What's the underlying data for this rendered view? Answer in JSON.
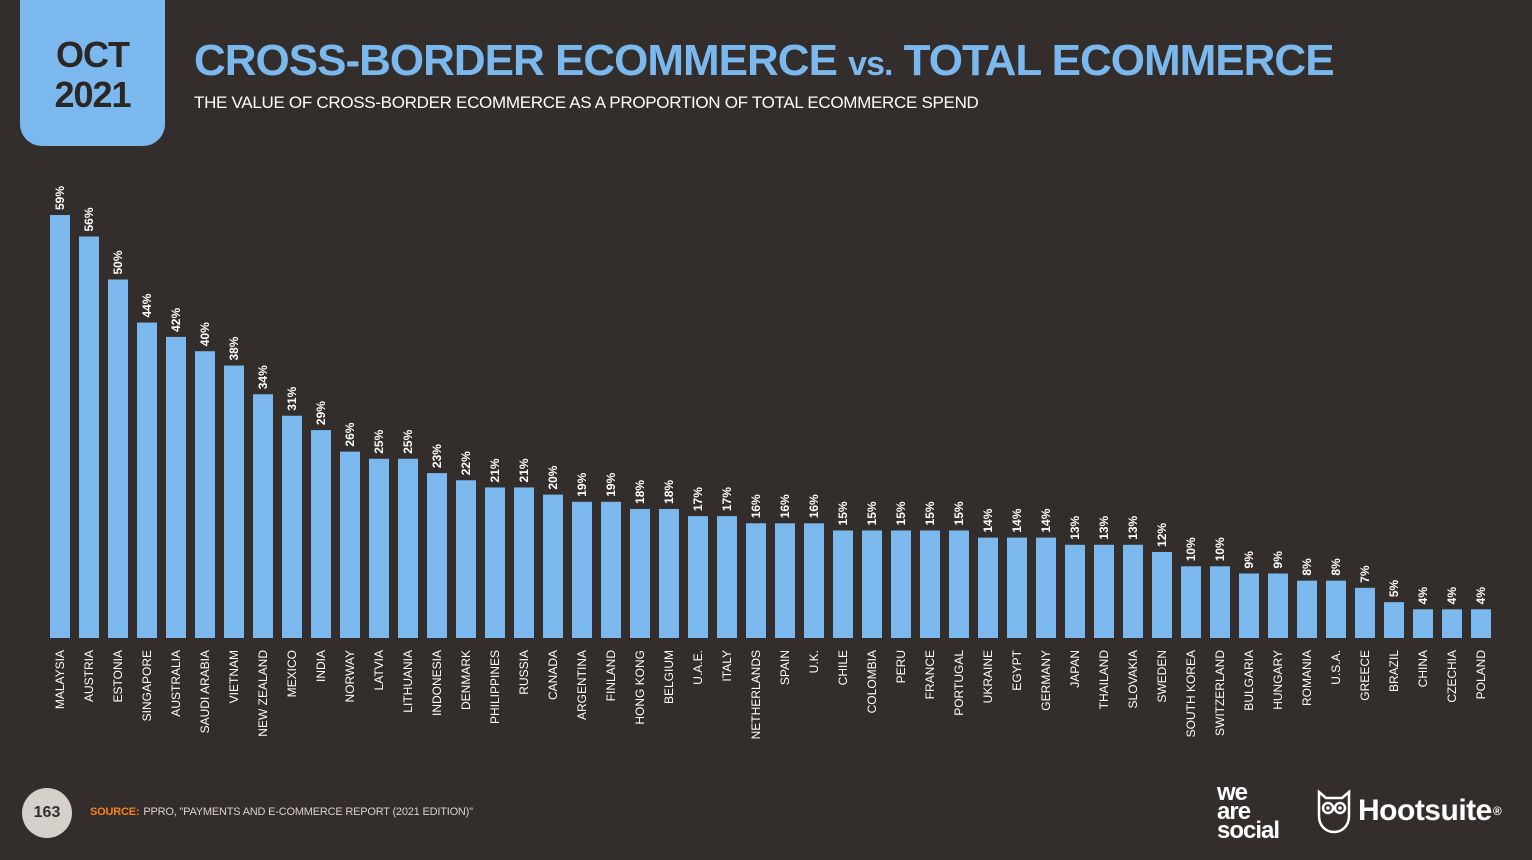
{
  "header": {
    "date_month": "OCT",
    "date_year": "2021",
    "title_part1": "CROSS-BORDER ECOMMERCE",
    "title_vs": "vs.",
    "title_part2": "TOTAL ECOMMERCE",
    "subtitle": "THE VALUE OF CROSS-BORDER ECOMMERCE AS A PROPORTION OF TOTAL ECOMMERCE SPEND"
  },
  "footer": {
    "page_number": "163",
    "source_label": "SOURCE:",
    "source_text": "PPRO, \"PAYMENTS AND E-COMMERCE REPORT (2021 EDITION)\"",
    "logo_we": "we",
    "logo_are": "are",
    "logo_social": "social",
    "logo_hootsuite": "Hootsuite",
    "hootsuite_mark": "®",
    "owl_icon": "owl-icon"
  },
  "colors": {
    "background": "#332e2b",
    "bar": "#7bb8ee",
    "accent_orange": "#f5821f"
  },
  "chart_data": {
    "type": "bar",
    "orientation": "vertical",
    "categories": [
      "MALAYSIA",
      "AUSTRIA",
      "ESTONIA",
      "SINGAPORE",
      "AUSTRALIA",
      "SAUDI ARABIA",
      "VIETNAM",
      "NEW ZEALAND",
      "MEXICO",
      "INDIA",
      "NORWAY",
      "LATVIA",
      "LITHUANIA",
      "INDONESIA",
      "DENMARK",
      "PHILIPPINES",
      "RUSSIA",
      "CANADA",
      "ARGENTINA",
      "FINLAND",
      "HONG KONG",
      "BELGIUM",
      "U.A.E.",
      "ITALY",
      "NETHERLANDS",
      "SPAIN",
      "U.K.",
      "CHILE",
      "COLOMBIA",
      "PERU",
      "FRANCE",
      "PORTUGAL",
      "UKRAINE",
      "EGYPT",
      "GERMANY",
      "JAPAN",
      "THAILAND",
      "SLOVAKIA",
      "SWEDEN",
      "SOUTH KOREA",
      "SWITZERLAND",
      "BULGARIA",
      "HUNGARY",
      "ROMANIA",
      "U.S.A.",
      "GREECE",
      "BRAZIL",
      "CHINA",
      "CZECHIA",
      "POLAND"
    ],
    "values": [
      59,
      56,
      50,
      44,
      42,
      40,
      38,
      34,
      31,
      29,
      26,
      25,
      25,
      23,
      22,
      21,
      21,
      20,
      19,
      19,
      18,
      18,
      17,
      17,
      16,
      16,
      16,
      15,
      15,
      15,
      15,
      15,
      14,
      14,
      14,
      13,
      13,
      13,
      12,
      10,
      10,
      9,
      9,
      8,
      8,
      7,
      5,
      4,
      4,
      4
    ],
    "labels": [
      "59%",
      "56%",
      "50%",
      "44%",
      "42%",
      "40%",
      "38%",
      "34%",
      "31%",
      "29%",
      "26%",
      "25%",
      "25%",
      "23%",
      "22%",
      "21%",
      "21%",
      "20%",
      "19%",
      "19%",
      "18%",
      "18%",
      "17%",
      "17%",
      "16%",
      "16%",
      "16%",
      "15%",
      "15%",
      "15%",
      "15%",
      "15%",
      "14%",
      "14%",
      "14%",
      "13%",
      "13%",
      "13%",
      "12%",
      "10%",
      "10%",
      "9%",
      "9%",
      "8%",
      "8%",
      "7%",
      "5%",
      "4%",
      "4%",
      "4%"
    ],
    "unit": "%",
    "ylim": [
      0,
      59
    ],
    "grid": false,
    "legend": "none"
  }
}
